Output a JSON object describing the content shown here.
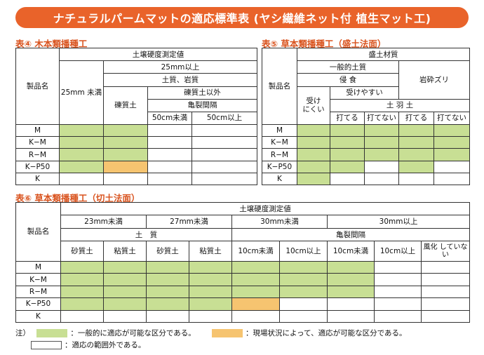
{
  "title": "ナチュラルパームマットの適応標準表 (ヤシ繊維ネット付 植生マット工)",
  "colors": {
    "banner": "#e9632a",
    "title_text": "#d9531e",
    "green": "#c8df94",
    "orange": "#f6c470"
  },
  "table4": {
    "caption": "表④ 木本類播種工",
    "product_header": "製品名",
    "soil_hardness": "土壌硬度測定値",
    "lt25": "25mm\n未満",
    "ge25": "25mm以上",
    "soil_rock": "土質、岩質",
    "gravel": "礫質土",
    "non_gravel": "礫質土以外",
    "crack_spacing": "亀裂間隔",
    "lt50": "50cm未満",
    "ge50": "50cm以上",
    "rows": [
      {
        "name": "M",
        "cells": [
          "g",
          "g",
          "w",
          "w"
        ]
      },
      {
        "name": "K−M",
        "cells": [
          "g",
          "g",
          "w",
          "w"
        ]
      },
      {
        "name": "R−M",
        "cells": [
          "g",
          "g",
          "w",
          "w"
        ]
      },
      {
        "name": "K−P50",
        "cells": [
          "g",
          "o",
          "w",
          "w"
        ]
      },
      {
        "name": "K",
        "cells": [
          "w",
          "w",
          "w",
          "w"
        ]
      }
    ]
  },
  "table5": {
    "caption": "表⑤ 草本類播種工（盛土法面）",
    "product_header": "製品名",
    "fill_material": "盛土材質",
    "general_soil": "一般的土質",
    "erosion": "侵 食",
    "hard_to_erode": "受け\nにくい",
    "easy_to_erode": "受けやすい",
    "crushed_rock": "岩砕ズリ",
    "tamping": "土 羽 土",
    "tamp_yes": "打てる",
    "tamp_no": "打てない",
    "rows": [
      {
        "name": "M",
        "cells": [
          "g",
          "g",
          "g",
          "g",
          "g"
        ]
      },
      {
        "name": "K−M",
        "cells": [
          "g",
          "g",
          "g",
          "g",
          "g"
        ]
      },
      {
        "name": "R−M",
        "cells": [
          "g",
          "g",
          "g",
          "g",
          "g"
        ]
      },
      {
        "name": "K−P50",
        "cells": [
          "g",
          "g",
          "w",
          "g",
          "w"
        ]
      },
      {
        "name": "K",
        "cells": [
          "g",
          "w",
          "w",
          "w",
          "w"
        ]
      }
    ]
  },
  "table6": {
    "caption": "表⑥ 草本類播種工（切土法面）",
    "product_header": "製品名",
    "soil_hardness": "土壌硬度測定値",
    "lt23": "23mm未満",
    "lt27": "27mm未満",
    "lt30": "30mm未満",
    "ge30": "30mm以上",
    "soil": "土　質",
    "crack_spacing": "亀裂間隔",
    "sandy": "砂質土",
    "clay": "粘質土",
    "sandy2": "砂質土",
    "clay2": "粘質土",
    "lt10a": "10cm未満",
    "ge10a": "10cm以上",
    "lt10b": "10cm未満",
    "ge10b": "10cm以上",
    "weather": "風化\nしていない",
    "rows": [
      {
        "name": "M",
        "cells": [
          "g",
          "g",
          "g",
          "g",
          "g",
          "g",
          "g",
          "w",
          "w"
        ]
      },
      {
        "name": "K−M",
        "cells": [
          "g",
          "g",
          "g",
          "g",
          "g",
          "g",
          "g",
          "w",
          "w"
        ]
      },
      {
        "name": "R−M",
        "cells": [
          "g",
          "g",
          "g",
          "g",
          "g",
          "g",
          "g",
          "w",
          "w"
        ]
      },
      {
        "name": "K−P50",
        "cells": [
          "g",
          "g",
          "g",
          "g",
          "o",
          "w",
          "w",
          "w",
          "w"
        ]
      },
      {
        "name": "K",
        "cells": [
          "w",
          "w",
          "w",
          "w",
          "w",
          "w",
          "w",
          "w",
          "w"
        ]
      }
    ]
  },
  "legend": {
    "note": "注）",
    "green_text": "：一般的に適応が可能な区分である。",
    "orange_text": "：現場状況によって、適応が可能な区分である。",
    "white_text": "：適応の範囲外である。"
  }
}
